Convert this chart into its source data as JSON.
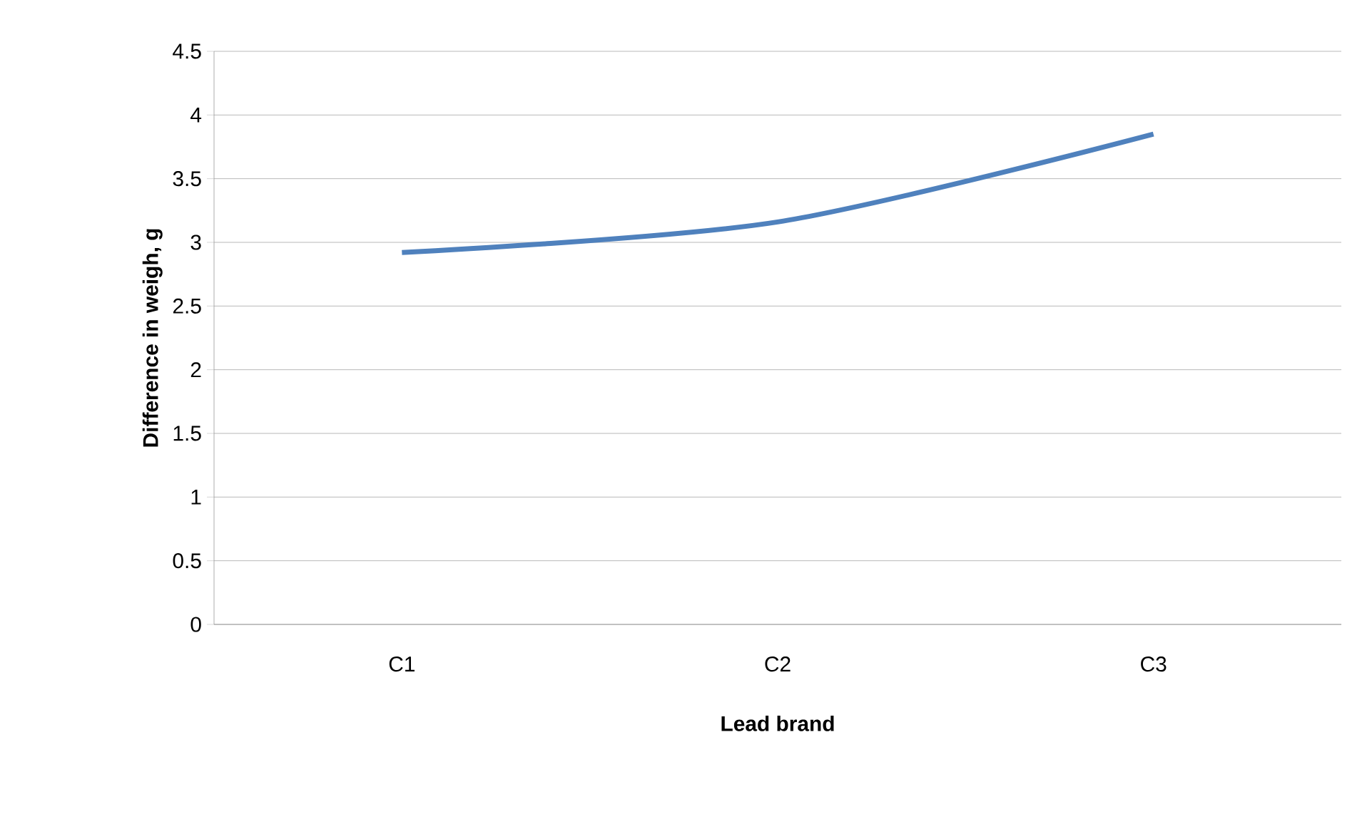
{
  "chart_data": {
    "type": "line",
    "xlabel": "Lead brand",
    "ylabel": "Difference in weigh, g",
    "categories": [
      "C1",
      "C2",
      "C3"
    ],
    "series": [
      {
        "color": "#4f81bd",
        "values": [
          2.92,
          3.16,
          3.85
        ]
      }
    ],
    "ylim": [
      0,
      4.5
    ],
    "yticks": [
      0,
      0.5,
      1,
      1.5,
      2,
      2.5,
      3,
      3.5,
      4,
      4.5
    ],
    "grid": "y",
    "marker": "none",
    "line_style": "solid"
  }
}
